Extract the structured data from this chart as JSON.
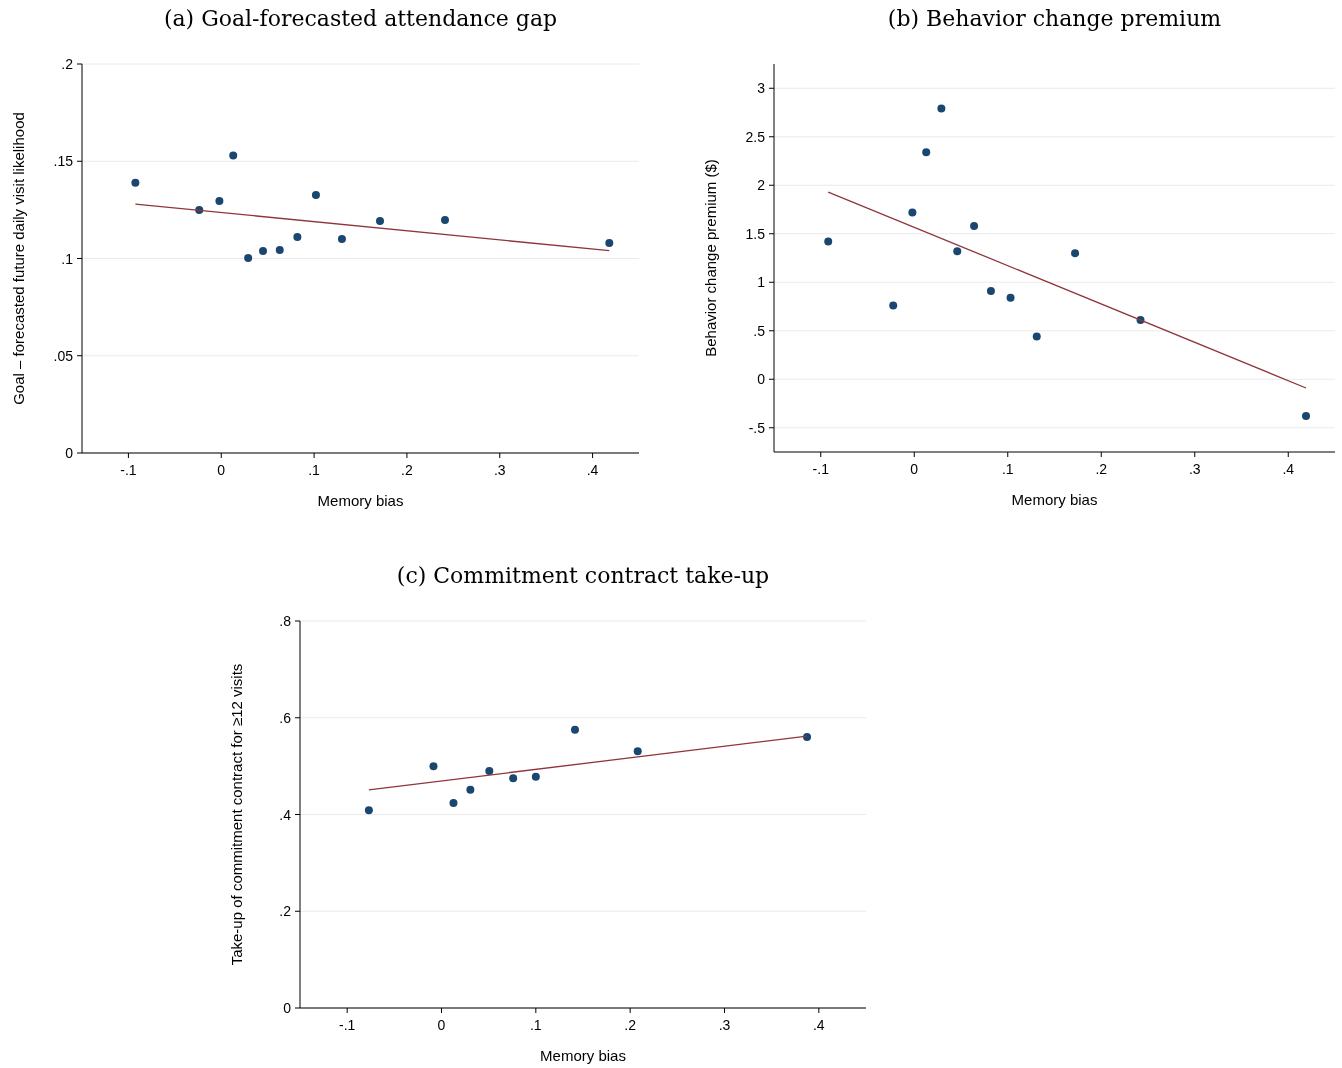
{
  "chart_data": [
    {
      "type": "scatter",
      "title": "(a) Goal-forecasted attendance gap",
      "xlabel": "Memory bias",
      "ylabel": "Goal – forecasted future daily visit likelihood",
      "xlim": [
        -0.15,
        0.45
      ],
      "xticks": [
        {
          "value": -0.1,
          "label": "-.1"
        },
        {
          "value": 0,
          "label": "0"
        },
        {
          "value": 0.1,
          "label": ".1"
        },
        {
          "value": 0.2,
          "label": ".2"
        },
        {
          "value": 0.3,
          "label": ".3"
        },
        {
          "value": 0.4,
          "label": ".4"
        }
      ],
      "ylim": [
        0,
        0.2
      ],
      "yticks": [
        0,
        {
          "value": 0.05,
          "label": ".05"
        },
        {
          "value": 0.1,
          "label": ".1"
        },
        {
          "value": 0.15,
          "label": ".15"
        },
        {
          "value": 0.2,
          "label": ".2"
        }
      ],
      "grid": "y",
      "marker": "circle",
      "series": [
        {
          "type": "scatter",
          "color": "#1a476f",
          "x": [
            -0.0925,
            -0.0237,
            -0.002,
            0.0129,
            0.029,
            0.045,
            0.063,
            0.082,
            0.102,
            0.13,
            0.171,
            0.241,
            0.418
          ],
          "values": [
            0.139,
            0.125,
            0.1296,
            0.153,
            0.1003,
            0.1039,
            0.1044,
            0.111,
            0.1327,
            0.11,
            0.1193,
            0.1198,
            0.108
          ]
        },
        {
          "type": "line",
          "color": "#90353b",
          "marker": "none",
          "x": [
            -0.0925,
            0.418
          ],
          "values": [
            0.128,
            0.104
          ]
        }
      ]
    },
    {
      "type": "scatter",
      "title": "(b) Behavior change premium",
      "xlabel": "Memory bias",
      "ylabel": "Behavior change premium ($)",
      "xlim": [
        -0.15,
        0.45
      ],
      "xticks": [
        {
          "value": -0.1,
          "label": "-.1"
        },
        {
          "value": 0,
          "label": "0"
        },
        {
          "value": 0.1,
          "label": ".1"
        },
        {
          "value": 0.2,
          "label": ".2"
        },
        {
          "value": 0.3,
          "label": ".3"
        },
        {
          "value": 0.4,
          "label": ".4"
        }
      ],
      "ylim": [
        -0.75,
        3.25
      ],
      "yticks": [
        {
          "value": -0.5,
          "label": "-.5"
        },
        0,
        {
          "value": 0.5,
          "label": ".5"
        },
        1,
        1.5,
        2,
        2.5,
        3
      ],
      "grid": "y",
      "marker": "circle",
      "series": [
        {
          "type": "scatter",
          "color": "#1a476f",
          "x": [
            -0.092,
            -0.0225,
            -0.002,
            0.0128,
            0.029,
            0.046,
            0.064,
            0.082,
            0.103,
            0.131,
            0.172,
            0.242,
            0.419
          ],
          "values": [
            1.42,
            0.76,
            1.72,
            2.34,
            2.79,
            1.32,
            1.58,
            0.91,
            0.84,
            0.44,
            1.3,
            0.61,
            -0.38
          ]
        },
        {
          "type": "line",
          "color": "#90353b",
          "marker": "none",
          "x": [
            -0.092,
            0.419
          ],
          "values": [
            1.93,
            -0.09
          ]
        }
      ]
    },
    {
      "type": "scatter",
      "title": "(c) Commitment contract take-up",
      "xlabel": "Memory bias",
      "ylabel": "Take-up of commitment contract for ≥12 visits",
      "xlim": [
        -0.15,
        0.45
      ],
      "xticks": [
        {
          "value": -0.1,
          "label": "-.1"
        },
        {
          "value": 0,
          "label": "0"
        },
        {
          "value": 0.1,
          "label": ".1"
        },
        {
          "value": 0.2,
          "label": ".2"
        },
        {
          "value": 0.3,
          "label": ".3"
        },
        {
          "value": 0.4,
          "label": ".4"
        }
      ],
      "ylim": [
        0,
        0.8
      ],
      "yticks": [
        0,
        {
          "value": 0.2,
          "label": ".2"
        },
        {
          "value": 0.4,
          "label": ".4"
        },
        {
          "value": 0.6,
          "label": ".6"
        },
        {
          "value": 0.8,
          "label": ".8"
        }
      ],
      "grid": "y",
      "marker": "circle",
      "series": [
        {
          "type": "scatter",
          "color": "#1a476f",
          "x": [
            -0.077,
            -0.0085,
            0.0127,
            0.0306,
            0.0507,
            0.076,
            0.1,
            0.1415,
            0.208,
            0.3875
          ],
          "values": [
            0.409,
            0.5,
            0.424,
            0.451,
            0.49,
            0.475,
            0.478,
            0.575,
            0.531,
            0.56
          ]
        },
        {
          "type": "line",
          "color": "#90353b",
          "marker": "none",
          "x": [
            -0.077,
            0.3875
          ],
          "values": [
            0.451,
            0.562
          ]
        }
      ]
    }
  ]
}
